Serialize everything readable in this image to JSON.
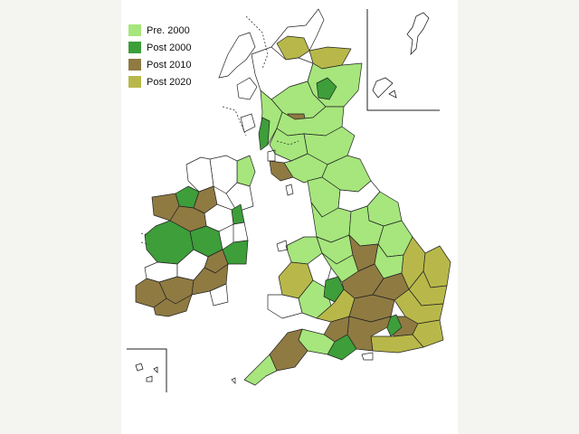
{
  "legend": {
    "items": [
      {
        "label": "Pre.  2000",
        "color": "#a6e67c"
      },
      {
        "label": "Post 2000",
        "color": "#3d9e3a"
      },
      {
        "label": "Post 2010",
        "color": "#8f7a42"
      },
      {
        "label": "Post 2020",
        "color": "#b8b84a"
      }
    ]
  },
  "colors": {
    "pre_2000": "#a6e67c",
    "post_2000": "#3d9e3a",
    "post_2010": "#8f7a42",
    "post_2020": "#b8b84a",
    "no_data": "#ffffff",
    "outline": "#222222",
    "panel": "#ffffff",
    "page": "#f4f4f0"
  }
}
